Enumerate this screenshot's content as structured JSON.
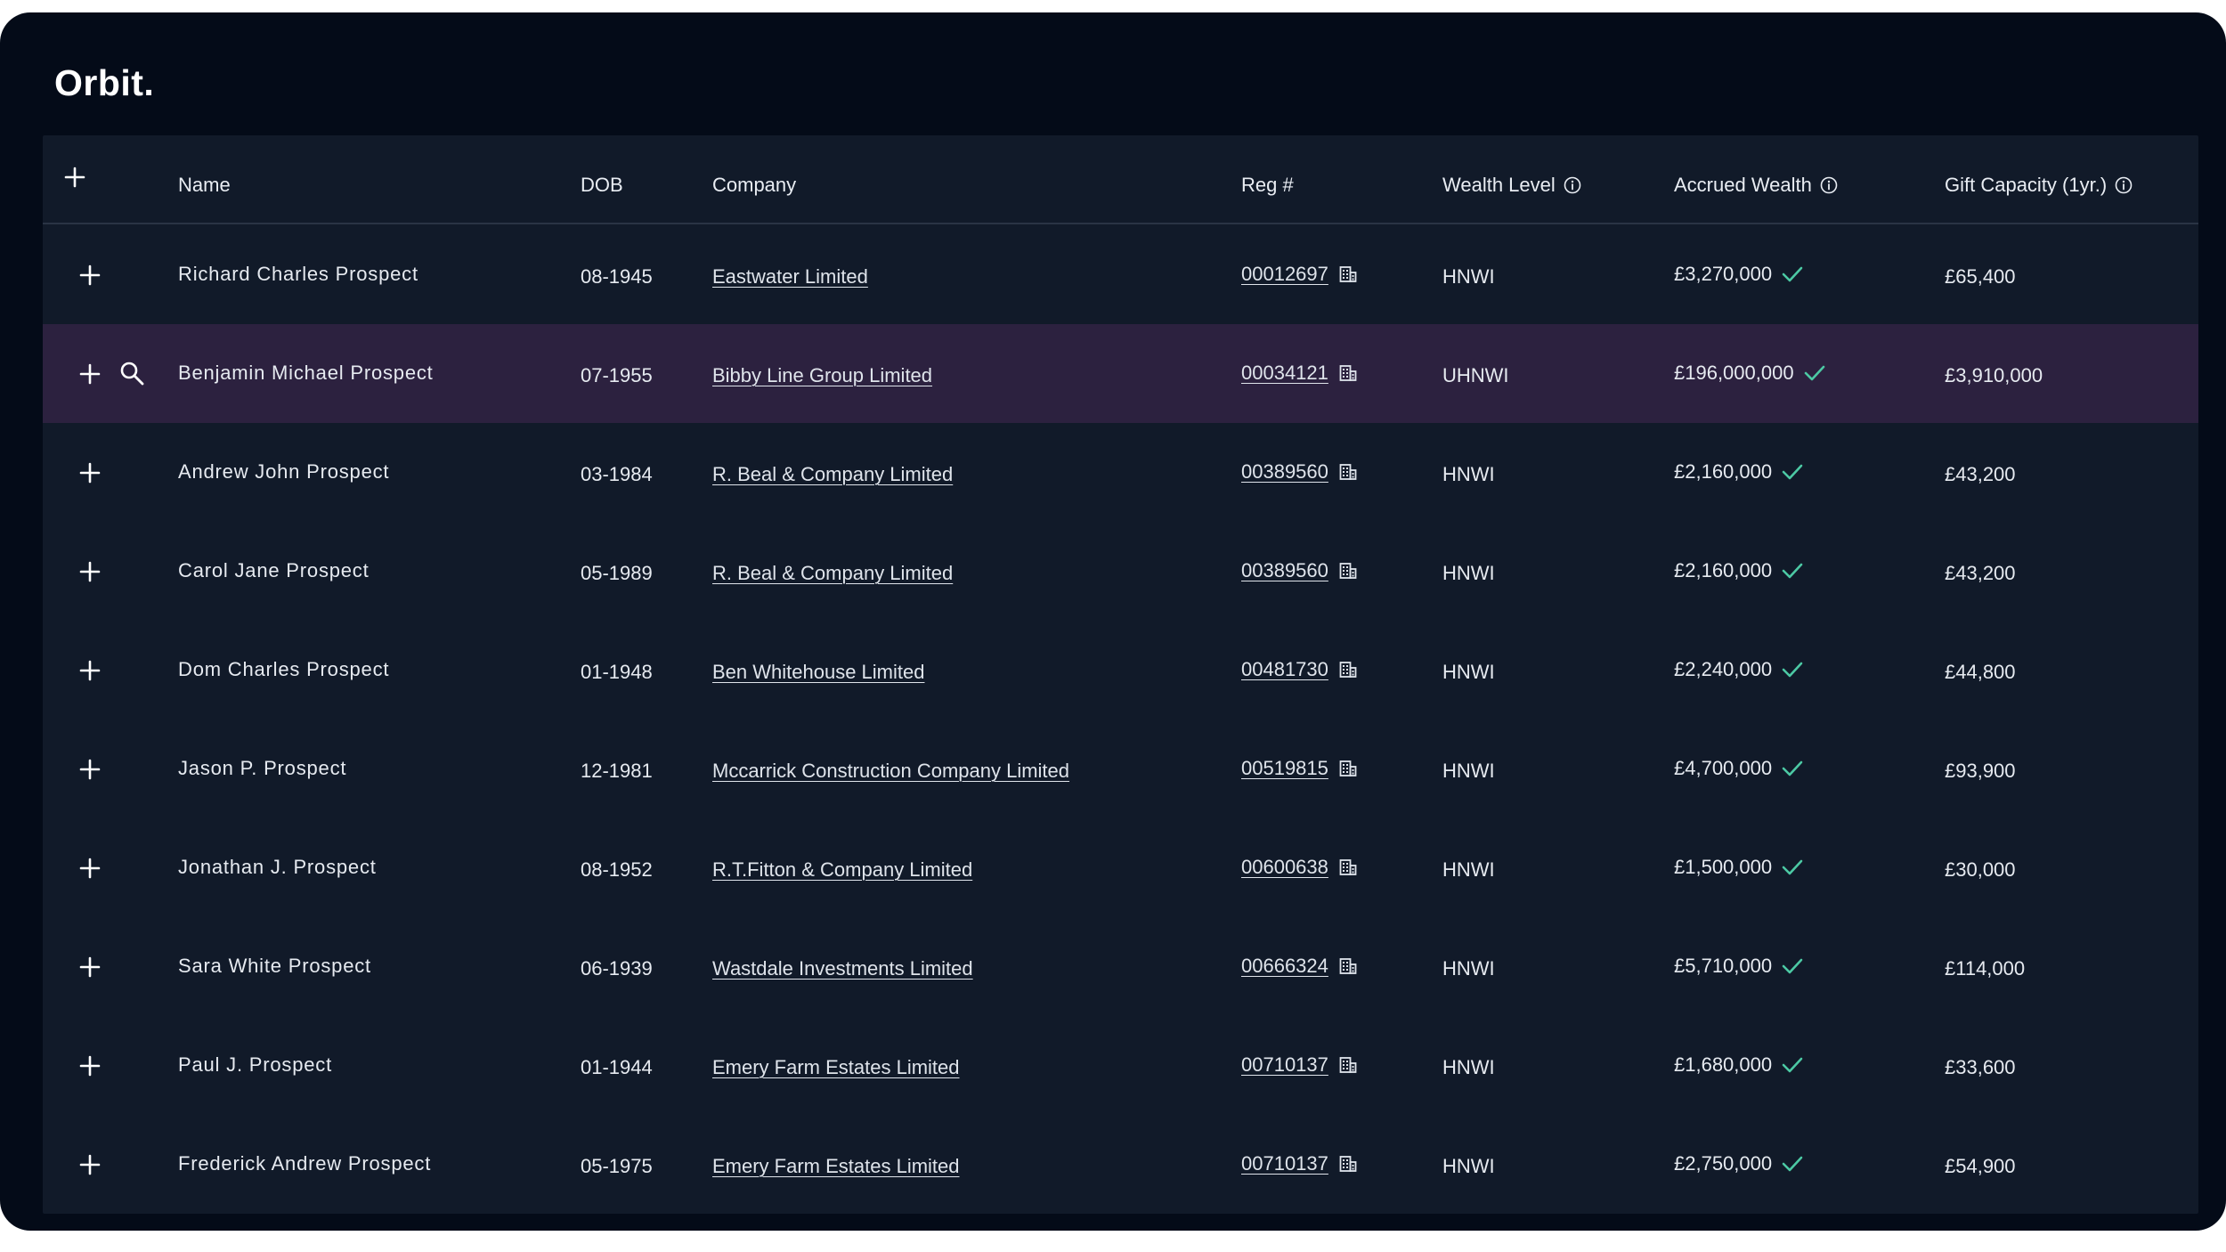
{
  "app": {
    "logo": "Orbit."
  },
  "table": {
    "headers": {
      "name": "Name",
      "dob": "DOB",
      "company": "Company",
      "reg": "Reg #",
      "wealth_level": "Wealth Level",
      "accrued_wealth": "Accrued Wealth",
      "gift_capacity": "Gift Capacity (1yr.)"
    },
    "rows": [
      {
        "name": "Richard Charles Prospect",
        "dob": "08-1945",
        "company": "Eastwater Limited",
        "reg": "00012697",
        "wealth_level": "HNWI",
        "accrued_wealth": "£3,270,000",
        "gift_capacity": "£65,400"
      },
      {
        "name": "Benjamin Michael Prospect",
        "dob": "07-1955",
        "company": "Bibby Line Group Limited",
        "reg": "00034121",
        "wealth_level": "UHNWI",
        "accrued_wealth": "£196,000,000",
        "gift_capacity": "£3,910,000"
      },
      {
        "name": "Andrew John Prospect",
        "dob": "03-1984",
        "company": "R. Beal & Company Limited",
        "reg": "00389560",
        "wealth_level": "HNWI",
        "accrued_wealth": "£2,160,000",
        "gift_capacity": "£43,200"
      },
      {
        "name": "Carol Jane Prospect",
        "dob": "05-1989",
        "company": "R. Beal & Company Limited",
        "reg": "00389560",
        "wealth_level": "HNWI",
        "accrued_wealth": "£2,160,000",
        "gift_capacity": "£43,200"
      },
      {
        "name": "Dom Charles Prospect",
        "dob": "01-1948",
        "company": "Ben Whitehouse Limited",
        "reg": "00481730",
        "wealth_level": "HNWI",
        "accrued_wealth": "£2,240,000",
        "gift_capacity": "£44,800"
      },
      {
        "name": "Jason P. Prospect",
        "dob": "12-1981",
        "company": "Mccarrick Construction Company Limited",
        "reg": "00519815",
        "wealth_level": "HNWI",
        "accrued_wealth": "£4,700,000",
        "gift_capacity": "£93,900"
      },
      {
        "name": "Jonathan J. Prospect",
        "dob": "08-1952",
        "company": "R.T.Fitton & Company Limited",
        "reg": "00600638",
        "wealth_level": "HNWI",
        "accrued_wealth": "£1,500,000",
        "gift_capacity": "£30,000"
      },
      {
        "name": "Sara White Prospect",
        "dob": "06-1939",
        "company": "Wastdale Investments Limited",
        "reg": "00666324",
        "wealth_level": "HNWI",
        "accrued_wealth": "£5,710,000",
        "gift_capacity": "£114,000"
      },
      {
        "name": "Paul J. Prospect",
        "dob": "01-1944",
        "company": "Emery Farm Estates Limited",
        "reg": "00710137",
        "wealth_level": "HNWI",
        "accrued_wealth": "£1,680,000",
        "gift_capacity": "£33,600"
      },
      {
        "name": "Frederick Andrew Prospect",
        "dob": "05-1975",
        "company": "Emery Farm Estates Limited",
        "reg": "00710137",
        "wealth_level": "HNWI",
        "accrued_wealth": "£2,750,000",
        "gift_capacity": "£54,900"
      }
    ]
  },
  "icons": {
    "add": "plus-icon",
    "info": "info-icon",
    "building": "building-icon",
    "verified": "check-icon",
    "search": "search-icon"
  },
  "colors": {
    "background": "#040b18",
    "table_bg": "#111a29",
    "highlight_row": "#2c213f",
    "check": "#4cc9a4"
  },
  "state": {
    "hovered_row": 1
  }
}
